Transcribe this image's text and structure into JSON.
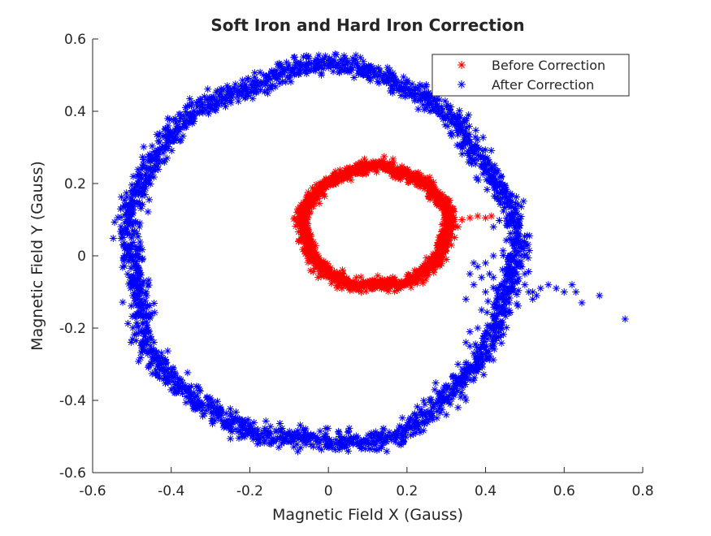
{
  "chart_data": {
    "type": "scatter",
    "title": "Soft Iron and Hard Iron Correction",
    "xlabel": "Magnetic Field X (Gauss)",
    "ylabel": "Magnetic Field Y (Gauss)",
    "xlim": [
      -0.6,
      0.8
    ],
    "ylim": [
      -0.6,
      0.6
    ],
    "xticks": [
      -0.6,
      -0.4,
      -0.2,
      0,
      0.2,
      0.4,
      0.6,
      0.8
    ],
    "yticks": [
      -0.6,
      -0.4,
      -0.2,
      0,
      0.2,
      0.4,
      0.6
    ],
    "grid": false,
    "legend_position": "top-right",
    "marker": "asterisk",
    "series": [
      {
        "name": "Before Correction",
        "color": "#ff0000",
        "shape": "ellipse-loop",
        "center": [
          0.12,
          0.08
        ],
        "radius_x": 0.185,
        "radius_y": 0.165,
        "noise": 0.008,
        "n_points": 1400,
        "extra_points": [
          [
            0.34,
            0.1
          ],
          [
            0.36,
            0.105
          ],
          [
            0.38,
            0.11
          ],
          [
            0.4,
            0.105
          ],
          [
            0.415,
            0.11
          ],
          [
            0.3,
            0.09
          ],
          [
            0.32,
            0.095
          ],
          [
            0.33,
            0.08
          ],
          [
            0.3,
            0.12
          ],
          [
            0.31,
            0.06
          ],
          [
            0.29,
            0.02
          ],
          [
            0.3,
            0.04
          ],
          [
            0.3,
            -0.01
          ],
          [
            0.29,
            0.0
          ]
        ]
      },
      {
        "name": "After Correction",
        "color": "#0000ff",
        "shape": "ellipse-loop",
        "center": [
          -0.02,
          0.0
        ],
        "radius_x": 0.49,
        "radius_y": 0.52,
        "noise": 0.014,
        "n_points": 2200,
        "extra_points": [
          [
            0.62,
            -0.08
          ],
          [
            0.63,
            -0.1
          ],
          [
            0.645,
            -0.13
          ],
          [
            0.69,
            -0.11
          ],
          [
            0.755,
            -0.175
          ],
          [
            0.6,
            -0.1
          ],
          [
            0.58,
            -0.09
          ],
          [
            0.56,
            -0.08
          ],
          [
            0.54,
            -0.09
          ],
          [
            0.52,
            -0.12
          ],
          [
            0.53,
            -0.11
          ],
          [
            0.51,
            -0.1
          ],
          [
            0.5,
            -0.05
          ],
          [
            0.49,
            0.0
          ],
          [
            0.48,
            0.05
          ],
          [
            0.47,
            0.1
          ],
          [
            0.46,
            0.15
          ],
          [
            0.45,
            0.19
          ],
          [
            0.44,
            0.22
          ],
          [
            0.43,
            0.16
          ],
          [
            0.42,
            0.08
          ],
          [
            0.42,
            0.0
          ],
          [
            0.41,
            -0.05
          ],
          [
            0.4,
            -0.1
          ],
          [
            0.39,
            -0.15
          ],
          [
            0.38,
            -0.2
          ],
          [
            0.36,
            -0.25
          ],
          [
            0.35,
            -0.3
          ],
          [
            0.34,
            -0.35
          ],
          [
            0.35,
            -0.4
          ],
          [
            0.33,
            -0.42
          ],
          [
            0.3,
            -0.44
          ],
          [
            0.36,
            -0.05
          ],
          [
            0.37,
            -0.08
          ],
          [
            0.38,
            -0.03
          ],
          [
            0.39,
            -0.06
          ],
          [
            0.35,
            -0.12
          ],
          [
            0.37,
            -0.02
          ],
          [
            0.4,
            -0.02
          ],
          [
            0.42,
            -0.06
          ],
          [
            0.46,
            -0.03
          ],
          [
            0.44,
            -0.08
          ],
          [
            0.46,
            -0.13
          ],
          [
            0.43,
            -0.14
          ],
          [
            0.36,
            -0.21
          ],
          [
            0.35,
            -0.24
          ],
          [
            0.37,
            -0.27
          ],
          [
            0.33,
            -0.3
          ],
          [
            0.32,
            -0.38
          ],
          [
            0.31,
            -0.41
          ],
          [
            0.48,
            -0.05
          ],
          [
            0.5,
            -0.08
          ],
          [
            0.47,
            -0.09
          ],
          [
            -0.47,
            -0.07
          ],
          [
            0.52,
            -0.1
          ]
        ]
      }
    ]
  }
}
